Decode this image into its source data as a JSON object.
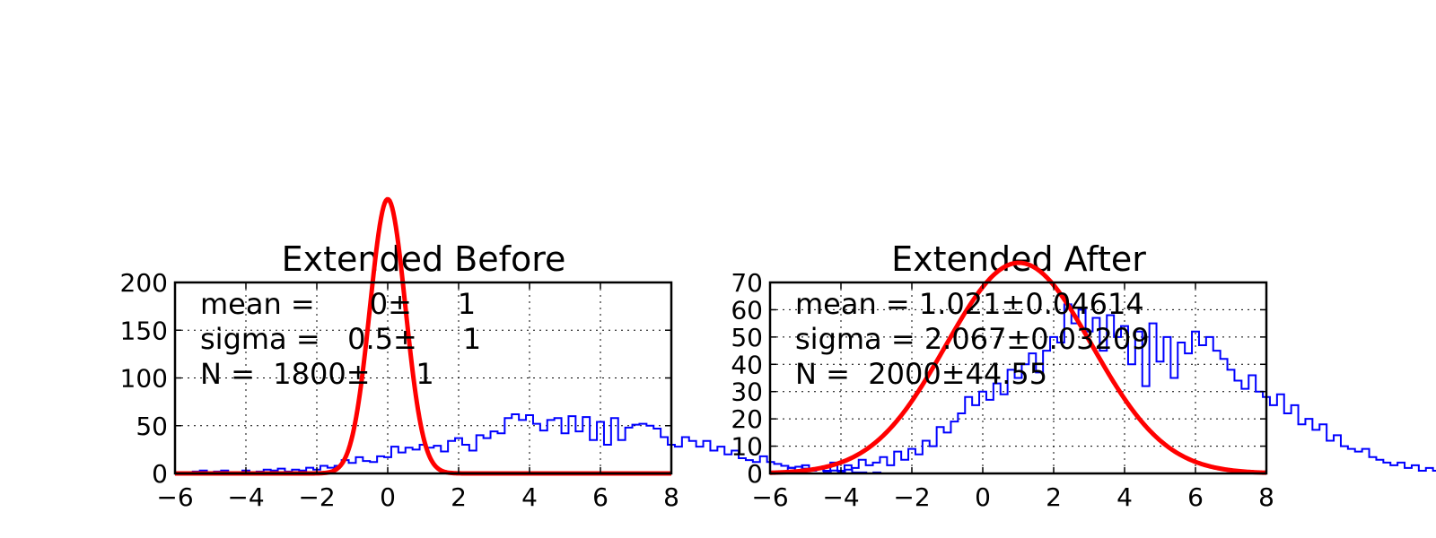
{
  "chart_data": [
    {
      "type": "histogram",
      "title": "Extended Before",
      "xlim": [
        -6,
        8
      ],
      "ylim": [
        0,
        200
      ],
      "xticks": [
        -6,
        -4,
        -2,
        0,
        2,
        4,
        6,
        8
      ],
      "xtick_labels": [
        "−6",
        "−4",
        "−2",
        "0",
        "2",
        "4",
        "6",
        "8"
      ],
      "yticks": [
        0,
        50,
        100,
        150,
        200
      ],
      "ytick_labels": [
        "0",
        "50",
        "100",
        "150",
        "200"
      ],
      "grid": true,
      "annotation": [
        "mean =      0±     1",
        "sigma =   0.5±     1",
        "N =  1800±     1"
      ],
      "colors": {
        "histogram": "#0000ff",
        "fit": "#ff0000"
      },
      "histogram": {
        "bin_start": -5.5,
        "bin_width": 0.2,
        "counts": [
          2,
          3,
          1,
          2,
          3,
          1,
          0,
          3,
          1,
          2,
          4,
          3,
          5,
          2,
          4,
          3,
          6,
          4,
          8,
          6,
          8,
          14,
          11,
          17,
          13,
          12,
          18,
          17,
          28,
          22,
          27,
          25,
          30,
          27,
          29,
          23,
          34,
          37,
          30,
          24,
          40,
          37,
          44,
          42,
          58,
          62,
          56,
          61,
          52,
          45,
          56,
          58,
          42,
          60,
          44,
          59,
          35,
          54,
          30,
          58,
          35,
          48,
          51,
          52,
          50,
          47,
          38,
          30,
          28,
          38,
          34,
          28,
          34,
          24,
          28,
          20,
          24,
          16,
          14,
          12,
          18,
          12,
          10,
          8,
          6,
          7,
          5,
          4,
          6,
          2,
          3,
          1,
          4,
          1,
          1,
          0,
          1,
          0,
          0,
          0,
          0,
          0,
          0,
          0,
          0,
          0,
          0,
          0,
          0,
          0,
          0,
          0,
          0,
          0,
          0,
          0,
          0,
          0,
          0,
          0
        ],
        "series": "step"
      },
      "fit": {
        "model": "gaussian",
        "mean": 0,
        "sigma": 0.5,
        "N": 1800,
        "bin_width": 0.2
      }
    },
    {
      "type": "histogram",
      "title": "Extended After",
      "xlim": [
        -6,
        8
      ],
      "ylim": [
        0,
        70
      ],
      "xticks": [
        -6,
        -4,
        -2,
        0,
        2,
        4,
        6,
        8
      ],
      "xtick_labels": [
        "−6",
        "−4",
        "−2",
        "0",
        "2",
        "4",
        "6",
        "8"
      ],
      "yticks": [
        0,
        10,
        20,
        30,
        40,
        50,
        60,
        70
      ],
      "ytick_labels": [
        "0",
        "10",
        "20",
        "30",
        "40",
        "50",
        "60",
        "70"
      ],
      "grid": true,
      "annotation": [
        "mean = 1.021±0.04614",
        "sigma = 2.067±0.03209",
        "N =  2000±44.55"
      ],
      "colors": {
        "histogram": "#0000ff",
        "fit": "#ff0000"
      },
      "histogram": {
        "bin_start": -5.5,
        "bin_width": 0.2,
        "counts": [
          2,
          1,
          3,
          1,
          2,
          1,
          4,
          1,
          3,
          2,
          5,
          3,
          4,
          6,
          3,
          8,
          5,
          9,
          7,
          12,
          10,
          17,
          15,
          19,
          22,
          28,
          25,
          30,
          27,
          33,
          29,
          38,
          35,
          40,
          44,
          37,
          45,
          50,
          48,
          62,
          55,
          60,
          52,
          57,
          45,
          58,
          50,
          54,
          40,
          52,
          32,
          55,
          41,
          50,
          35,
          48,
          44,
          52,
          47,
          50,
          45,
          42,
          38,
          34,
          31,
          36,
          30,
          28,
          25,
          29,
          22,
          25,
          18,
          20,
          16,
          18,
          12,
          14,
          10,
          9,
          8,
          9,
          6,
          5,
          4,
          3,
          4,
          2,
          3,
          1,
          2,
          1,
          1,
          0,
          1,
          0,
          0,
          0,
          0,
          0,
          0,
          0,
          0,
          0,
          0,
          0,
          0,
          0,
          0,
          0,
          0,
          0,
          0,
          0,
          0,
          0,
          0,
          0,
          0,
          0
        ],
        "series": "step"
      },
      "fit": {
        "model": "gaussian",
        "mean": 1.021,
        "sigma": 2.067,
        "N": 2000,
        "bin_width": 0.2
      }
    }
  ]
}
